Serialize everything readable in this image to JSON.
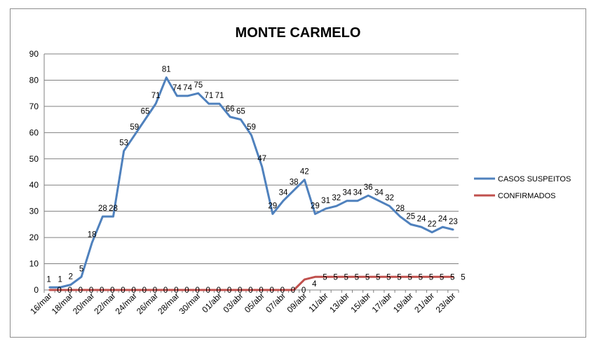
{
  "chart_data": {
    "type": "line",
    "title": "MONTE CARMELO",
    "xlabel": "",
    "ylabel": "",
    "ylim": [
      0,
      90
    ],
    "yticks": [
      0,
      10,
      20,
      30,
      40,
      50,
      60,
      70,
      80,
      90
    ],
    "grid": true,
    "legend_position": "right",
    "categories": [
      "16/mar",
      "17/mar",
      "18/mar",
      "19/mar",
      "20/mar",
      "21/mar",
      "22/mar",
      "23/mar",
      "24/mar",
      "25/mar",
      "26/mar",
      "27/mar",
      "28/mar",
      "29/mar",
      "30/mar",
      "31/mar",
      "01/abr",
      "02/abr",
      "03/abr",
      "04/abr",
      "05/abr",
      "06/abr",
      "07/abr",
      "08/abr",
      "09/abr",
      "10/abr",
      "11/abr",
      "12/abr",
      "13/abr",
      "14/abr",
      "15/abr",
      "16/abr",
      "17/abr",
      "18/abr",
      "19/abr",
      "20/abr",
      "21/abr",
      "22/abr",
      "23/abr"
    ],
    "tick_labels": [
      "16/mar",
      "18/mar",
      "20/mar",
      "22/mar",
      "24/mar",
      "26/mar",
      "28/mar",
      "30/mar",
      "01/abr",
      "03/abr",
      "05/abr",
      "07/abr",
      "09/abr",
      "11/abr",
      "13/abr",
      "15/abr",
      "17/abr",
      "19/abr",
      "21/abr",
      "23/abr"
    ],
    "series": [
      {
        "name": "CASOS SUSPEITOS",
        "color": "#4f81bd",
        "values": [
          1,
          1,
          2,
          5,
          18,
          28,
          28,
          53,
          59,
          65,
          71,
          81,
          74,
          74,
          75,
          71,
          71,
          66,
          65,
          59,
          47,
          29,
          34,
          38,
          42,
          29,
          31,
          32,
          34,
          34,
          36,
          34,
          32,
          28,
          25,
          24,
          22,
          24,
          23
        ]
      },
      {
        "name": "CONFIRMADOS",
        "color": "#c0504d",
        "values": [
          0,
          0,
          0,
          0,
          0,
          0,
          0,
          0,
          0,
          0,
          0,
          0,
          0,
          0,
          0,
          0,
          0,
          0,
          0,
          0,
          0,
          0,
          0,
          0,
          4,
          5,
          5,
          5,
          5,
          5,
          5,
          5,
          5,
          5,
          5,
          5,
          5,
          5,
          5
        ]
      }
    ]
  }
}
